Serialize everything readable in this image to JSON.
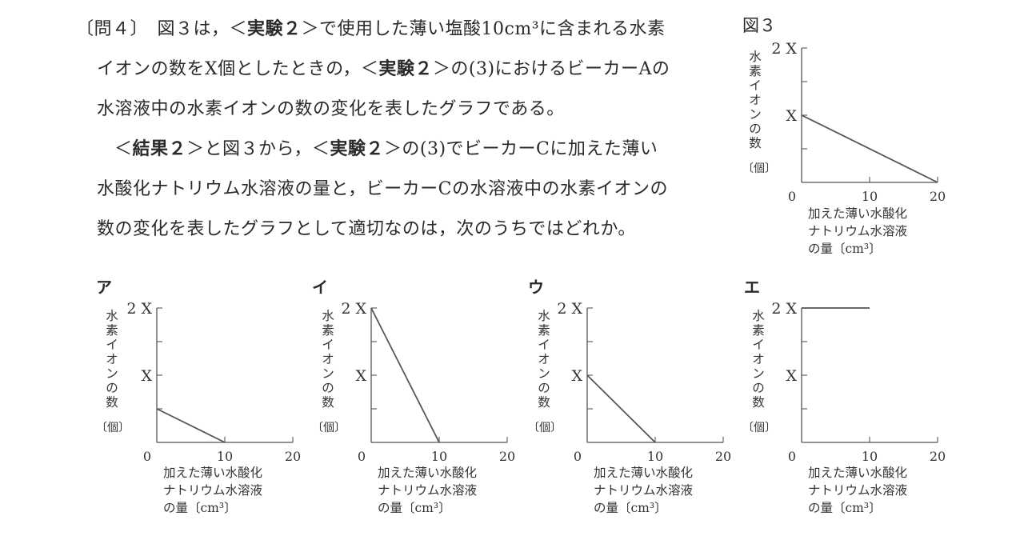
{
  "question": {
    "lines": [
      "〔問４〕　図３は，＜",
      "実験２",
      "＞で使用した薄い塩酸10cm³に含まれる水素",
      "イオンの数をX個としたときの，＜",
      "実験２",
      "＞の(3)におけるビーカーAの",
      "水溶液中の水素イオンの数の変化を表したグラフである。",
      "＜",
      "結果２",
      "＞と図３から，＜",
      "実験２",
      "＞の(3)でビーカーCに加えた薄い",
      "水酸化ナトリウム水溶液の量と，ビーカーCの水溶液中の水素イオンの",
      "数の変化を表したグラフとして適切なのは，次のうちではどれか。"
    ]
  },
  "figure_title": "図３",
  "common": {
    "y_axis_label": "水素イオンの数",
    "y_axis_unit": "〔個〕",
    "x_axis_label_line1": "加えた薄い水酸化",
    "x_axis_label_line2": "ナトリウム水溶液",
    "x_axis_label_line3": "の量〔cm³〕",
    "x_ticks": [
      "0",
      "10",
      "20"
    ],
    "y_tick_labels": [
      "X",
      "2 X"
    ]
  },
  "chart_data": [
    {
      "type": "line",
      "id": "fig3",
      "title": "図３",
      "xlabel": "加えた薄い水酸化ナトリウム水溶液の量〔cm³〕",
      "ylabel": "水素イオンの数〔個〕",
      "xlim": [
        0,
        20
      ],
      "ylim": [
        0,
        2
      ],
      "y_unit": "X",
      "x": [
        0,
        20
      ],
      "y": [
        1,
        0
      ]
    },
    {
      "type": "line",
      "id": "A",
      "title": "ア",
      "xlabel": "加えた薄い水酸化ナトリウム水溶液の量〔cm³〕",
      "ylabel": "水素イオンの数〔個〕",
      "xlim": [
        0,
        20
      ],
      "ylim": [
        0,
        2
      ],
      "y_unit": "X",
      "x": [
        0,
        10
      ],
      "y": [
        0.5,
        0
      ]
    },
    {
      "type": "line",
      "id": "I",
      "title": "イ",
      "xlabel": "加えた薄い水酸化ナトリウム水溶液の量〔cm³〕",
      "ylabel": "水素イオンの数〔個〕",
      "xlim": [
        0,
        20
      ],
      "ylim": [
        0,
        2
      ],
      "y_unit": "X",
      "x": [
        0,
        10
      ],
      "y": [
        2,
        0
      ]
    },
    {
      "type": "line",
      "id": "U",
      "title": "ウ",
      "xlabel": "加えた薄い水酸化ナトリウム水溶液の量〔cm³〕",
      "ylabel": "水素イオンの数〔個〕",
      "xlim": [
        0,
        20
      ],
      "ylim": [
        0,
        2
      ],
      "y_unit": "X",
      "x": [
        0,
        10
      ],
      "y": [
        1,
        0
      ]
    },
    {
      "type": "line",
      "id": "E",
      "title": "エ",
      "xlabel": "加えた薄い水酸化ナトリウム水溶液の量〔cm³〕",
      "ylabel": "水素イオンの数〔個〕",
      "xlim": [
        0,
        20
      ],
      "ylim": [
        0,
        2
      ],
      "y_unit": "X",
      "x": [
        0,
        10
      ],
      "y": [
        2,
        2
      ]
    }
  ]
}
